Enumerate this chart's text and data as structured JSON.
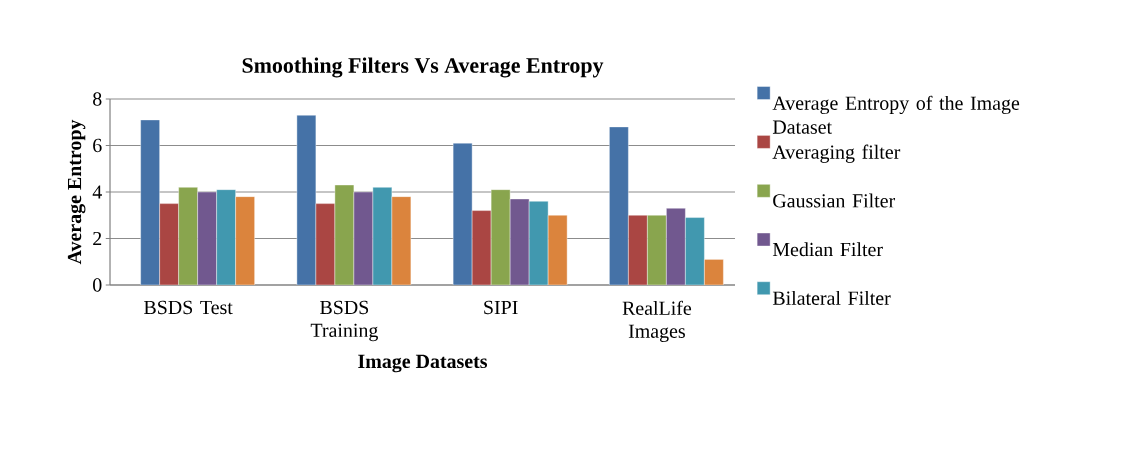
{
  "chart_data": {
    "type": "bar",
    "title": "Smoothing Filters Vs Average Entropy",
    "xlabel": "Image Datasets",
    "ylabel": "Average Entropy",
    "categories": [
      "BSDS Test",
      "BSDS Training",
      "SIPI",
      "RealLife Images"
    ],
    "series": [
      {
        "name": "Average Entropy of the Image Dataset",
        "color": "#4572a7",
        "values": [
          7.1,
          7.3,
          6.1,
          6.8
        ]
      },
      {
        "name": "Averaging filter",
        "color": "#aa4643",
        "values": [
          3.5,
          3.5,
          3.2,
          3.0
        ]
      },
      {
        "name": "Gaussian Filter",
        "color": "#89a54e",
        "values": [
          4.2,
          4.3,
          4.1,
          3.0
        ]
      },
      {
        "name": "Median Filter",
        "color": "#71588f",
        "values": [
          4.0,
          4.0,
          3.7,
          3.3
        ]
      },
      {
        "name": "Bilateral Filter",
        "color": "#4198af",
        "values": [
          4.1,
          4.2,
          3.6,
          2.9
        ]
      },
      {
        "color": "#db843d",
        "values": [
          3.8,
          3.8,
          3.0,
          1.1
        ]
      }
    ],
    "ylim": [
      0,
      8
    ],
    "yticks": [
      0,
      2,
      4,
      6,
      8
    ],
    "grid": "y",
    "legend": "right"
  }
}
